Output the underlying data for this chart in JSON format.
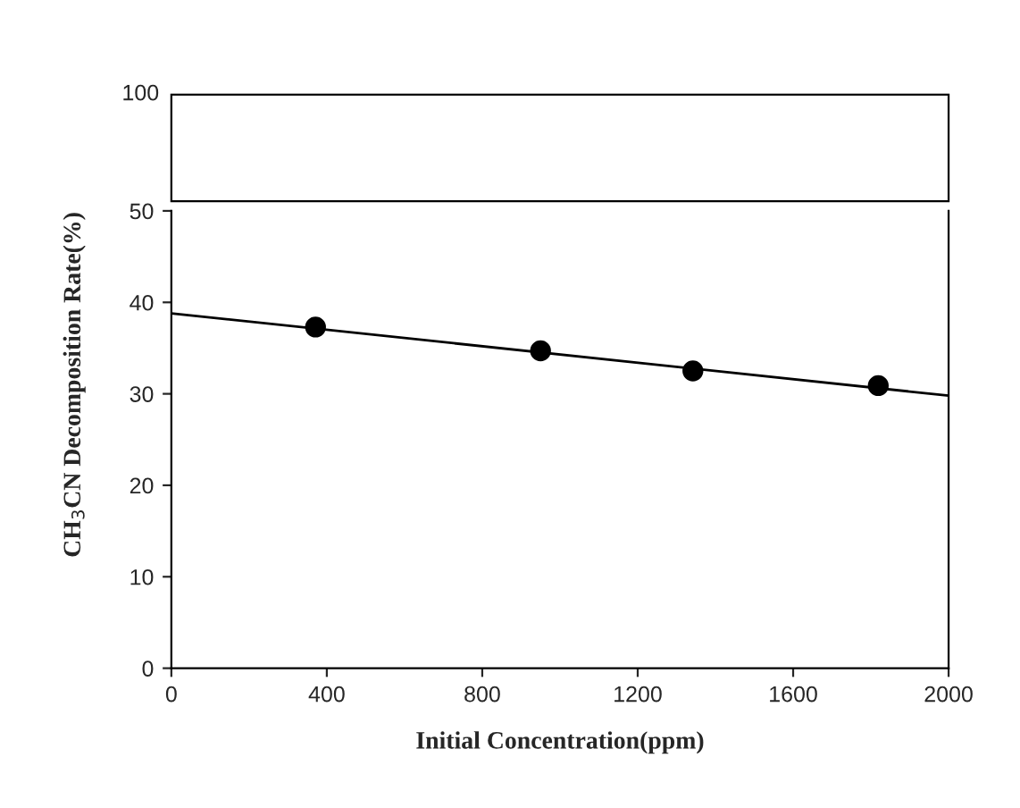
{
  "chart_data": {
    "type": "scatter",
    "xlabel": "Initial Concentration(ppm)",
    "ylabel": "CH$_{3}$CN Decomposition Rate(%)",
    "annotations": [
      "100"
    ],
    "xlim": [
      0,
      2000
    ],
    "ylim": [
      0,
      50
    ],
    "xticks": [
      0,
      400,
      800,
      1200,
      1600,
      2000
    ],
    "yticks": [
      0,
      10,
      20,
      30,
      40,
      50
    ],
    "grid": false,
    "marker": "circle",
    "series": [
      {
        "color": "#000000",
        "x": [
          371,
          950,
          1342,
          1819
        ],
        "values": [
          37.3,
          34.7,
          32.5,
          30.9
        ]
      },
      {
        "type": "line",
        "color": "#000000",
        "marker": "none",
        "x": [
          0,
          2000
        ],
        "values": [
          38.8,
          29.8
        ]
      }
    ]
  }
}
